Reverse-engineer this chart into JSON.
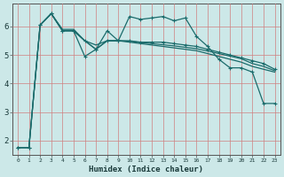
{
  "xlabel": "Humidex (Indice chaleur)",
  "bg_color": "#cce8e8",
  "grid_color": "#d08080",
  "line_color": "#1a6b6b",
  "xlim": [
    -0.5,
    23.5
  ],
  "ylim": [
    1.5,
    6.8
  ],
  "yticks": [
    2,
    3,
    4,
    5,
    6
  ],
  "xticks": [
    0,
    1,
    2,
    3,
    4,
    5,
    6,
    7,
    8,
    9,
    10,
    11,
    12,
    13,
    14,
    15,
    16,
    17,
    18,
    19,
    20,
    21,
    22,
    23
  ],
  "line1_x": [
    0,
    1,
    2,
    3,
    4,
    5,
    6,
    7,
    8,
    9,
    10,
    11,
    12,
    13,
    14,
    15,
    16,
    17,
    18,
    19,
    20,
    21,
    22,
    23
  ],
  "line1_y": [
    1.75,
    1.75,
    6.05,
    6.45,
    5.85,
    5.85,
    4.95,
    5.2,
    5.85,
    5.5,
    6.35,
    6.25,
    6.3,
    6.35,
    6.2,
    6.3,
    5.65,
    5.3,
    4.85,
    4.55,
    4.55,
    4.4,
    3.3,
    3.3
  ],
  "line2_x": [
    0,
    1,
    2,
    3,
    4,
    5,
    6,
    7,
    8,
    9,
    10,
    11,
    12,
    13,
    14,
    15,
    16,
    17,
    18,
    19,
    20,
    21,
    22,
    23
  ],
  "line2_y": [
    1.75,
    1.75,
    6.05,
    6.45,
    5.85,
    5.85,
    5.5,
    5.2,
    5.5,
    5.5,
    5.5,
    5.45,
    5.45,
    5.45,
    5.4,
    5.35,
    5.3,
    5.2,
    5.1,
    5.0,
    4.9,
    4.8,
    4.7,
    4.5
  ],
  "line3_x": [
    2,
    3,
    4,
    5,
    6,
    7,
    8,
    9,
    10,
    11,
    12,
    13,
    14,
    15,
    16,
    17,
    18,
    19,
    20,
    21,
    22,
    23
  ],
  "line3_y": [
    6.05,
    6.45,
    5.85,
    5.85,
    5.5,
    5.2,
    5.5,
    5.5,
    5.45,
    5.4,
    5.35,
    5.3,
    5.25,
    5.2,
    5.15,
    5.05,
    4.95,
    4.85,
    4.75,
    4.6,
    4.5,
    4.4
  ],
  "line4_x": [
    0,
    1,
    2,
    3,
    4,
    5,
    6,
    7,
    8,
    9,
    10,
    11,
    12,
    13,
    14,
    15,
    16,
    17,
    18,
    19,
    20,
    21,
    22,
    23
  ],
  "line4_y": [
    1.75,
    1.75,
    6.05,
    6.45,
    5.9,
    5.9,
    5.5,
    5.35,
    5.5,
    5.5,
    5.48,
    5.44,
    5.4,
    5.36,
    5.32,
    5.27,
    5.22,
    5.14,
    5.05,
    4.96,
    4.87,
    4.7,
    4.6,
    4.45
  ]
}
